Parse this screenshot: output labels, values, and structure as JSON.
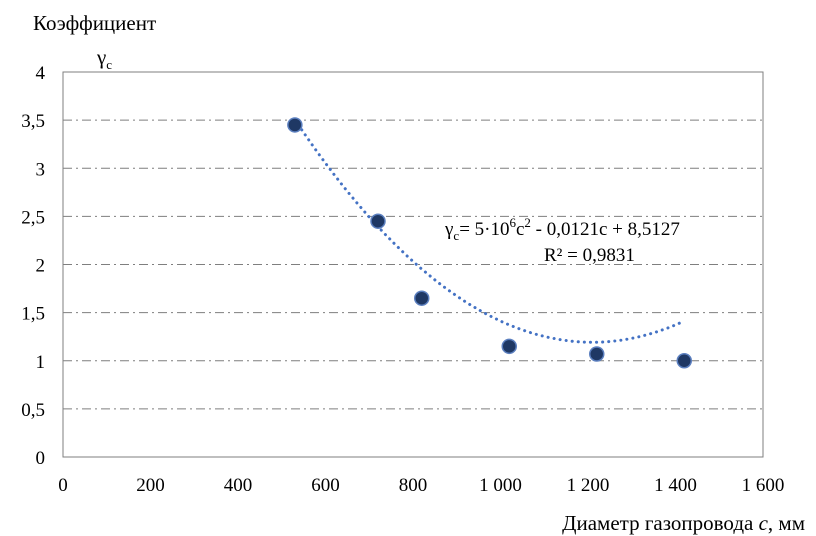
{
  "chart_data": {
    "type": "scatter",
    "ylabel": "Коэффициент",
    "ylabel_symbol": "γ",
    "ylabel_symbol_sub": "c",
    "xlabel": "Диаметр газопровода ",
    "xlabel_var": "c",
    "xlabel_unit": ", мм",
    "xlim": [
      0,
      1600
    ],
    "ylim": [
      0,
      4
    ],
    "xticks": [
      {
        "v": 0,
        "label": "0"
      },
      {
        "v": 200,
        "label": "200"
      },
      {
        "v": 400,
        "label": "400"
      },
      {
        "v": 600,
        "label": "600"
      },
      {
        "v": 800,
        "label": "800"
      },
      {
        "v": 1000,
        "label": "1 000"
      },
      {
        "v": 1200,
        "label": "1 200"
      },
      {
        "v": 1400,
        "label": "1 400"
      },
      {
        "v": 1600,
        "label": "1 600"
      }
    ],
    "yticks": [
      {
        "v": 0,
        "label": "0"
      },
      {
        "v": 0.5,
        "label": "0,5"
      },
      {
        "v": 1,
        "label": "1"
      },
      {
        "v": 1.5,
        "label": "1,5"
      },
      {
        "v": 2,
        "label": "2"
      },
      {
        "v": 2.5,
        "label": "2,5"
      },
      {
        "v": 3,
        "label": "3"
      },
      {
        "v": 3.5,
        "label": "3,5"
      },
      {
        "v": 4,
        "label": "4"
      }
    ],
    "grid": "horizontal, dash-dot",
    "series": [
      {
        "points": [
          {
            "x": 530,
            "y": 3.45
          },
          {
            "x": 720,
            "y": 2.45
          },
          {
            "x": 820,
            "y": 1.65
          },
          {
            "x": 1020,
            "y": 1.15
          },
          {
            "x": 1220,
            "y": 1.07
          },
          {
            "x": 1420,
            "y": 1.0
          }
        ],
        "color": "#1f3864"
      }
    ],
    "trendline": {
      "type": "polynomial",
      "x_from": 530,
      "x_to": 1420,
      "coefficients": [
        5e-06,
        -0.0121,
        8.5127
      ],
      "color": "#4472c4",
      "equation": {
        "sym": "γ",
        "sub": "c",
        "p1": "= 5·10",
        "exp": "6",
        "p2": "c",
        "exp2": "2",
        "p3": " - 0,0121c + 8,5127"
      },
      "r_squared": "R² = 0,9831"
    }
  }
}
